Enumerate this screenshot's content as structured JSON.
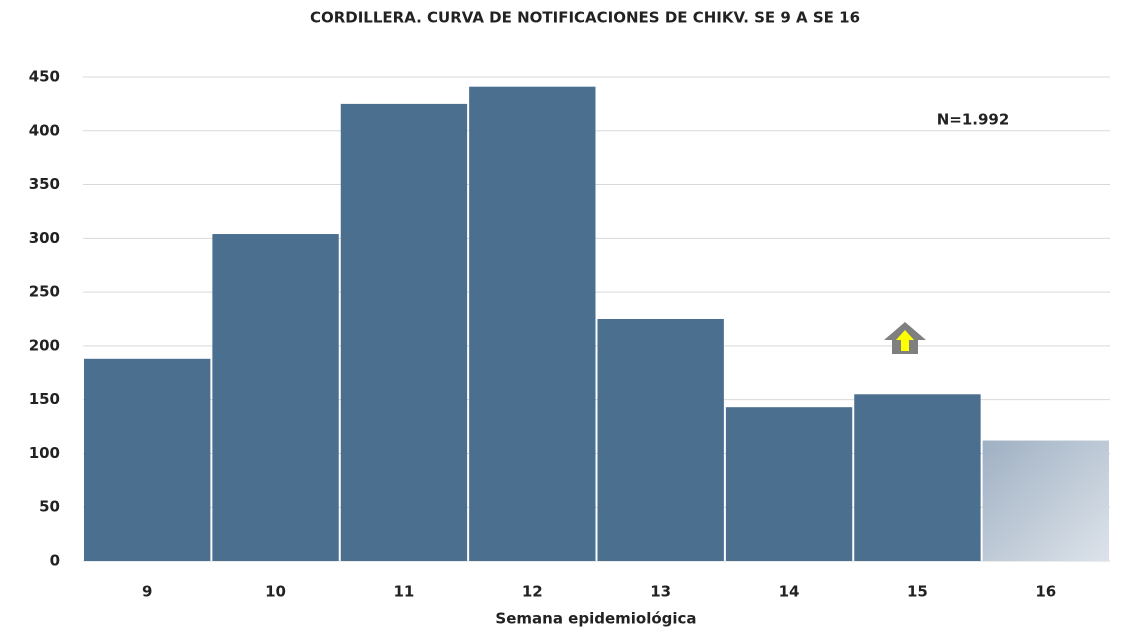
{
  "chart_data": {
    "type": "bar",
    "title": "CORDILLERA. CURVA DE NOTIFICACIONES DE CHIKV. SE 9 A SE 16",
    "x_label": "Semana epidemiológica",
    "annotation": "N=1.992",
    "categories": [
      "9",
      "10",
      "11",
      "12",
      "13",
      "14",
      "15",
      "16"
    ],
    "values": [
      188,
      304,
      425,
      441,
      225,
      143,
      155,
      112
    ],
    "colors": [
      "#4a6f8f",
      "#4a6f8f",
      "#4a6f8f",
      "#4a6f8f",
      "#4a6f8f",
      "#4a6f8f",
      "#4a6f8f",
      "#a3b4c6"
    ],
    "ylim": [
      0,
      450
    ],
    "yticks": [
      0,
      50,
      100,
      150,
      200,
      250,
      300,
      350,
      400,
      450
    ],
    "grid": true
  }
}
